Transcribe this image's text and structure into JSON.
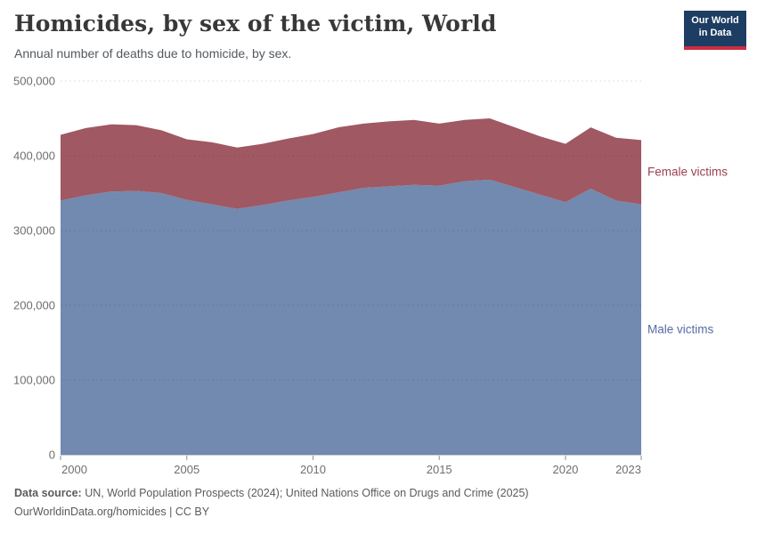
{
  "header": {
    "title": "Homicides, by sex of the victim, World",
    "subtitle": "Annual number of deaths due to homicide, by sex."
  },
  "logo": {
    "line1": "Our World",
    "line2": "in Data",
    "bg": "#1d3d63",
    "accent": "#cb2d43"
  },
  "chart_data": {
    "type": "area",
    "stacked": true,
    "title": "Homicides, by sex of the victim, World",
    "x": [
      2000,
      2001,
      2002,
      2003,
      2004,
      2005,
      2006,
      2007,
      2008,
      2009,
      2010,
      2011,
      2012,
      2013,
      2014,
      2015,
      2016,
      2017,
      2018,
      2019,
      2020,
      2021,
      2022,
      2023
    ],
    "series": [
      {
        "name": "Male victims",
        "color": "#7289b0",
        "label_color": "#566ba4",
        "values": [
          340000,
          347000,
          352000,
          353000,
          350000,
          341000,
          335000,
          329000,
          334000,
          340000,
          345000,
          351000,
          357000,
          359000,
          361000,
          360000,
          366000,
          368000,
          358000,
          348000,
          338000,
          356000,
          340000,
          335000
        ]
      },
      {
        "name": "Female victims",
        "color": "#a05862",
        "label_color": "#9a4352",
        "values": [
          88000,
          90000,
          90000,
          88000,
          84000,
          81000,
          83000,
          82000,
          82000,
          83000,
          84000,
          87000,
          86000,
          87000,
          87000,
          83000,
          82000,
          82000,
          80000,
          78000,
          78000,
          82000,
          84000,
          86000
        ]
      }
    ],
    "ylim": [
      0,
      500000
    ],
    "yticks": [
      0,
      100000,
      200000,
      300000,
      400000,
      500000
    ],
    "xticks": [
      2000,
      2005,
      2010,
      2015,
      2020,
      2023
    ],
    "grid": "horizontal-dashed",
    "legend_position": "right-of-last-point"
  },
  "footer": {
    "datasource_label": "Data source:",
    "datasource_text": " UN, World Population Prospects (2024); United Nations Office on Drugs and Crime (2025)",
    "license": "OurWorldinData.org/homicides | CC BY"
  }
}
